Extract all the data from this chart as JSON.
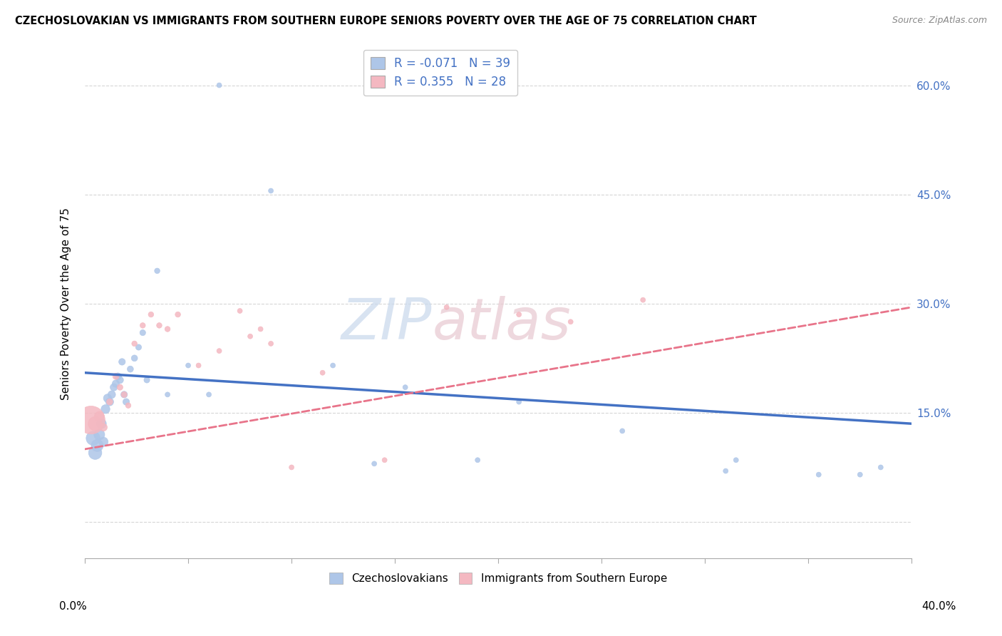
{
  "title": "CZECHOSLOVAKIAN VS IMMIGRANTS FROM SOUTHERN EUROPE SENIORS POVERTY OVER THE AGE OF 75 CORRELATION CHART",
  "source": "Source: ZipAtlas.com",
  "ylabel": "Seniors Poverty Over the Age of 75",
  "y_ticks": [
    0.0,
    0.15,
    0.3,
    0.45,
    0.6
  ],
  "y_tick_labels": [
    "",
    "15.0%",
    "30.0%",
    "45.0%",
    "60.0%"
  ],
  "xlim": [
    0.0,
    0.4
  ],
  "ylim": [
    -0.05,
    0.65
  ],
  "legend_entries": [
    {
      "label": "Czechoslovakians",
      "R": "-0.071",
      "N": "39",
      "color": "#aec6e8"
    },
    {
      "label": "Immigrants from Southern Europe",
      "R": "0.355",
      "N": "28",
      "color": "#f4b8c1"
    }
  ],
  "blue_scatter_x": [
    0.004,
    0.005,
    0.006,
    0.007,
    0.008,
    0.009,
    0.01,
    0.011,
    0.012,
    0.013,
    0.014,
    0.015,
    0.016,
    0.017,
    0.018,
    0.019,
    0.02,
    0.022,
    0.024,
    0.026,
    0.028,
    0.03,
    0.035,
    0.04,
    0.05,
    0.06,
    0.065,
    0.09,
    0.12,
    0.14,
    0.155,
    0.19,
    0.21,
    0.26,
    0.31,
    0.315,
    0.355,
    0.375,
    0.385
  ],
  "blue_scatter_y": [
    0.115,
    0.095,
    0.105,
    0.12,
    0.135,
    0.11,
    0.155,
    0.17,
    0.165,
    0.175,
    0.185,
    0.19,
    0.2,
    0.195,
    0.22,
    0.175,
    0.165,
    0.21,
    0.225,
    0.24,
    0.26,
    0.195,
    0.345,
    0.175,
    0.215,
    0.175,
    0.6,
    0.455,
    0.215,
    0.08,
    0.185,
    0.085,
    0.165,
    0.125,
    0.07,
    0.085,
    0.065,
    0.065,
    0.075
  ],
  "blue_scatter_size": [
    200,
    180,
    150,
    120,
    100,
    90,
    80,
    70,
    65,
    60,
    55,
    55,
    50,
    50,
    45,
    45,
    45,
    40,
    40,
    35,
    35,
    35,
    30,
    25,
    25,
    25,
    25,
    25,
    25,
    25,
    25,
    25,
    25,
    25,
    25,
    25,
    25,
    25,
    25
  ],
  "pink_scatter_x": [
    0.003,
    0.005,
    0.007,
    0.009,
    0.012,
    0.015,
    0.017,
    0.019,
    0.021,
    0.024,
    0.028,
    0.032,
    0.036,
    0.04,
    0.045,
    0.055,
    0.065,
    0.075,
    0.08,
    0.085,
    0.09,
    0.1,
    0.115,
    0.145,
    0.175,
    0.21,
    0.235,
    0.27
  ],
  "pink_scatter_y": [
    0.14,
    0.135,
    0.145,
    0.13,
    0.165,
    0.2,
    0.185,
    0.175,
    0.16,
    0.245,
    0.27,
    0.285,
    0.27,
    0.265,
    0.285,
    0.215,
    0.235,
    0.29,
    0.255,
    0.265,
    0.245,
    0.075,
    0.205,
    0.085,
    0.295,
    0.285,
    0.275,
    0.305
  ],
  "pink_scatter_size": [
    800,
    200,
    100,
    60,
    40,
    40,
    35,
    35,
    30,
    30,
    30,
    30,
    30,
    30,
    30,
    25,
    25,
    25,
    25,
    25,
    25,
    25,
    25,
    25,
    25,
    25,
    25,
    25
  ],
  "blue_line_x": [
    0.0,
    0.4
  ],
  "blue_line_y": [
    0.205,
    0.135
  ],
  "pink_line_x": [
    0.0,
    0.4
  ],
  "pink_line_y": [
    0.1,
    0.295
  ],
  "bg_color": "#ffffff",
  "grid_color": "#cccccc",
  "blue_color": "#aec6e8",
  "pink_color": "#f4b8c1",
  "blue_line_color": "#4472c4",
  "pink_line_color": "#e8748a"
}
